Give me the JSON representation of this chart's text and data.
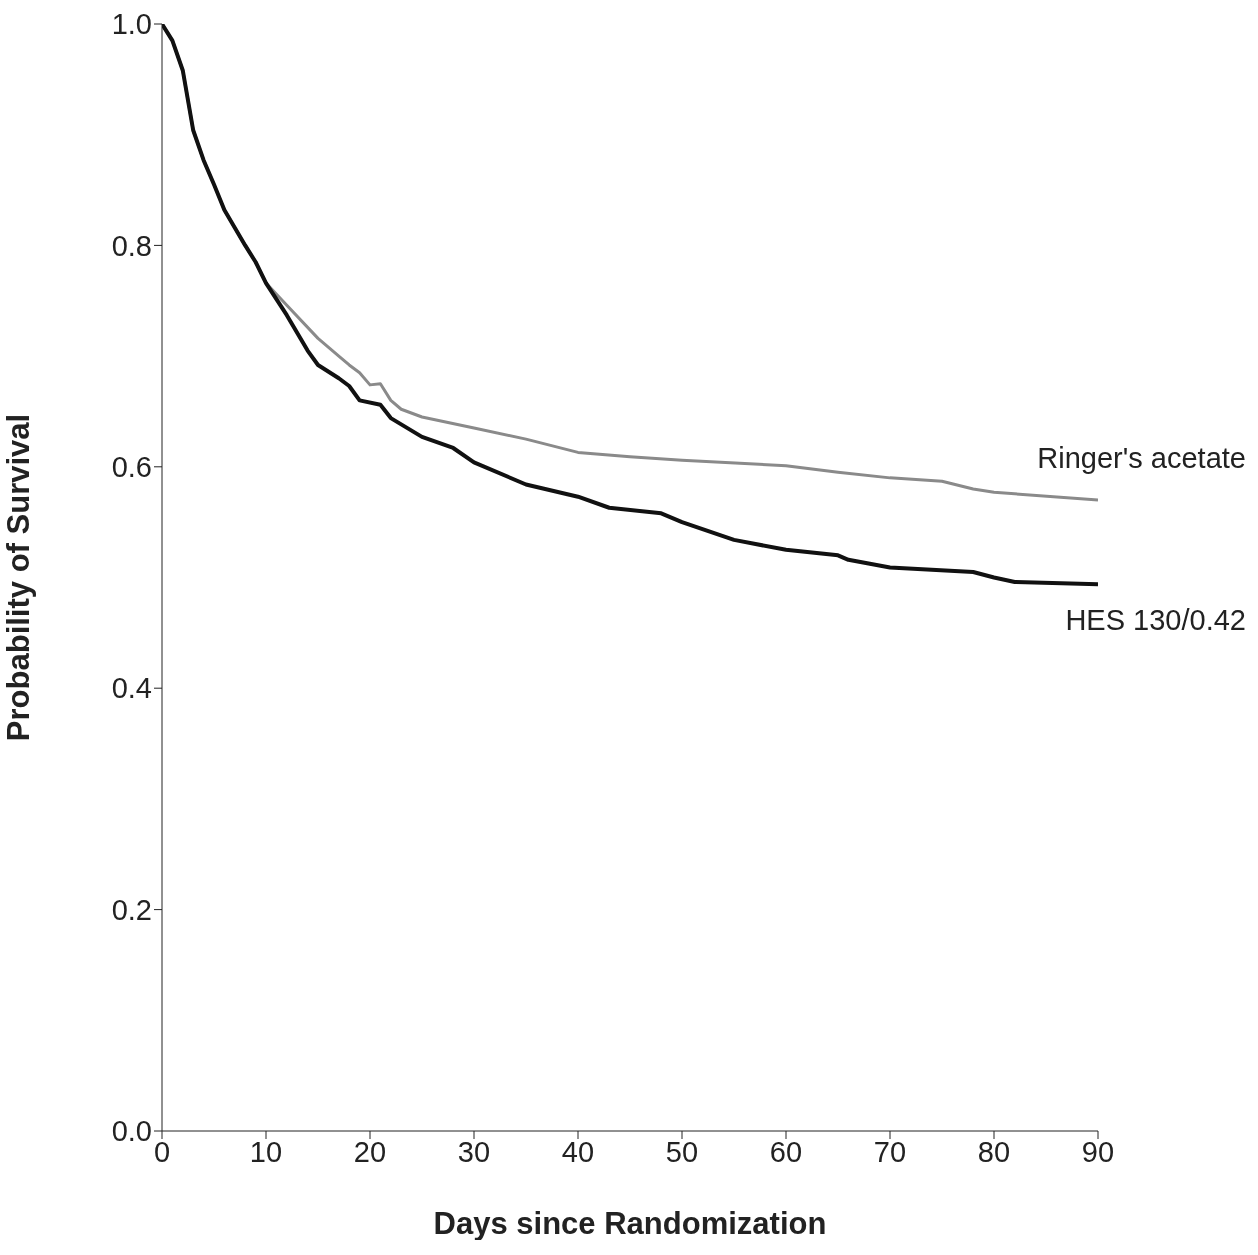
{
  "chart_data": {
    "type": "line",
    "xlabel": "Days since Randomization",
    "ylabel": "Probability of Survival",
    "xlim": [
      0,
      90
    ],
    "xticks": [
      0,
      10,
      20,
      30,
      40,
      50,
      60,
      70,
      80,
      90
    ],
    "ylim": [
      0,
      1
    ],
    "yticks": [
      {
        "value": 0,
        "label": "0.0"
      },
      0.2,
      0.4,
      0.6,
      0.8,
      {
        "value": 1,
        "label": "1.0"
      }
    ],
    "grid": false,
    "legend": false,
    "marker": "none",
    "series": [
      {
        "name": "Ringer's acetate",
        "color": "#8a8a8a",
        "x": [
          0,
          1,
          2,
          3,
          4,
          5,
          6,
          7,
          8,
          9,
          10,
          12,
          15,
          17,
          18,
          19,
          20,
          21,
          22,
          23,
          25,
          30,
          35,
          40,
          45,
          50,
          60,
          65,
          70,
          75,
          78,
          80,
          90
        ],
        "values": [
          1.0,
          0.985,
          0.958,
          0.904,
          0.877,
          0.855,
          0.832,
          0.816,
          0.8,
          0.785,
          0.766,
          0.746,
          0.716,
          0.7,
          0.692,
          0.685,
          0.674,
          0.675,
          0.66,
          0.652,
          0.645,
          0.635,
          0.625,
          0.613,
          0.609,
          0.606,
          0.601,
          0.595,
          0.59,
          0.587,
          0.58,
          0.577,
          0.57
        ]
      },
      {
        "name": "HES 130/0.42",
        "color": "#111111",
        "x": [
          0,
          1,
          2,
          3,
          4,
          5,
          6,
          7,
          8,
          9,
          10,
          12,
          14,
          15,
          17,
          18,
          19,
          21,
          22,
          25,
          28,
          30,
          35,
          40,
          43,
          48,
          50,
          55,
          60,
          65,
          66,
          70,
          78,
          80,
          82,
          90
        ],
        "values": [
          1.0,
          0.985,
          0.958,
          0.904,
          0.877,
          0.855,
          0.832,
          0.816,
          0.8,
          0.785,
          0.766,
          0.737,
          0.705,
          0.692,
          0.68,
          0.673,
          0.66,
          0.656,
          0.644,
          0.627,
          0.617,
          0.604,
          0.584,
          0.573,
          0.563,
          0.558,
          0.55,
          0.534,
          0.525,
          0.52,
          0.516,
          0.509,
          0.505,
          0.5,
          0.496,
          0.494
        ]
      }
    ]
  }
}
